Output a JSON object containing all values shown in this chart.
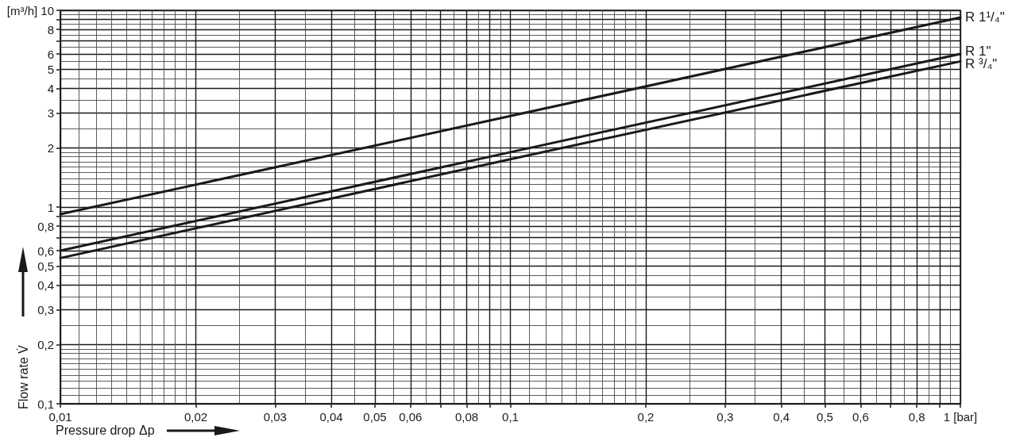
{
  "chart_data": {
    "type": "line",
    "xlabel": "Pressure drop Δp",
    "ylabel": "Flow rate V̇",
    "log": "xy",
    "grid": true,
    "xlim": [
      0.01,
      1
    ],
    "ylim": [
      0.1,
      10
    ],
    "xticks": [
      {
        "value": 0.01,
        "label": "0,01"
      },
      {
        "value": 0.02,
        "label": "0,02"
      },
      {
        "value": 0.03,
        "label": "0,03"
      },
      {
        "value": 0.04,
        "label": "0,04"
      },
      {
        "value": 0.05,
        "label": "0,05"
      },
      {
        "value": 0.06,
        "label": "0,06"
      },
      {
        "value": 0.07,
        "label": null
      },
      {
        "value": 0.08,
        "label": "0,08"
      },
      {
        "value": 0.09,
        "label": null
      },
      {
        "value": 0.1,
        "label": "0,1"
      },
      {
        "value": 0.2,
        "label": "0,2"
      },
      {
        "value": 0.3,
        "label": "0,3"
      },
      {
        "value": 0.4,
        "label": "0,4"
      },
      {
        "value": 0.5,
        "label": "0,5"
      },
      {
        "value": 0.6,
        "label": "0,6"
      },
      {
        "value": 0.7,
        "label": null
      },
      {
        "value": 0.8,
        "label": "0,8"
      },
      {
        "value": 0.9,
        "label": null
      },
      {
        "value": 1,
        "label": "1 [bar]"
      }
    ],
    "yticks": [
      {
        "value": 0.1,
        "label": "0,1"
      },
      {
        "value": 0.2,
        "label": "0,2"
      },
      {
        "value": 0.3,
        "label": "0,3"
      },
      {
        "value": 0.4,
        "label": "0,4"
      },
      {
        "value": 0.5,
        "label": "0,5"
      },
      {
        "value": 0.6,
        "label": "0,6"
      },
      {
        "value": 0.7,
        "label": null
      },
      {
        "value": 0.8,
        "label": "0,8"
      },
      {
        "value": 0.9,
        "label": null
      },
      1,
      2,
      3,
      4,
      5,
      6,
      {
        "value": 7,
        "label": null
      },
      8,
      {
        "value": 9,
        "label": null
      },
      {
        "value": 10,
        "label": "[m³/h] 10"
      }
    ],
    "x": [
      0.01,
      0.1,
      1
    ],
    "series": [
      {
        "name": "R 1¹/₄\"",
        "color": "#1a1a1a",
        "values": [
          0.92,
          2.9,
          9.2
        ]
      },
      {
        "name": "R 1\"",
        "color": "#1a1a1a",
        "values": [
          0.6,
          1.9,
          6
        ]
      },
      {
        "name": "R ³/₄\"",
        "color": "#1a1a1a",
        "values": [
          0.55,
          1.75,
          5.5
        ]
      }
    ]
  }
}
